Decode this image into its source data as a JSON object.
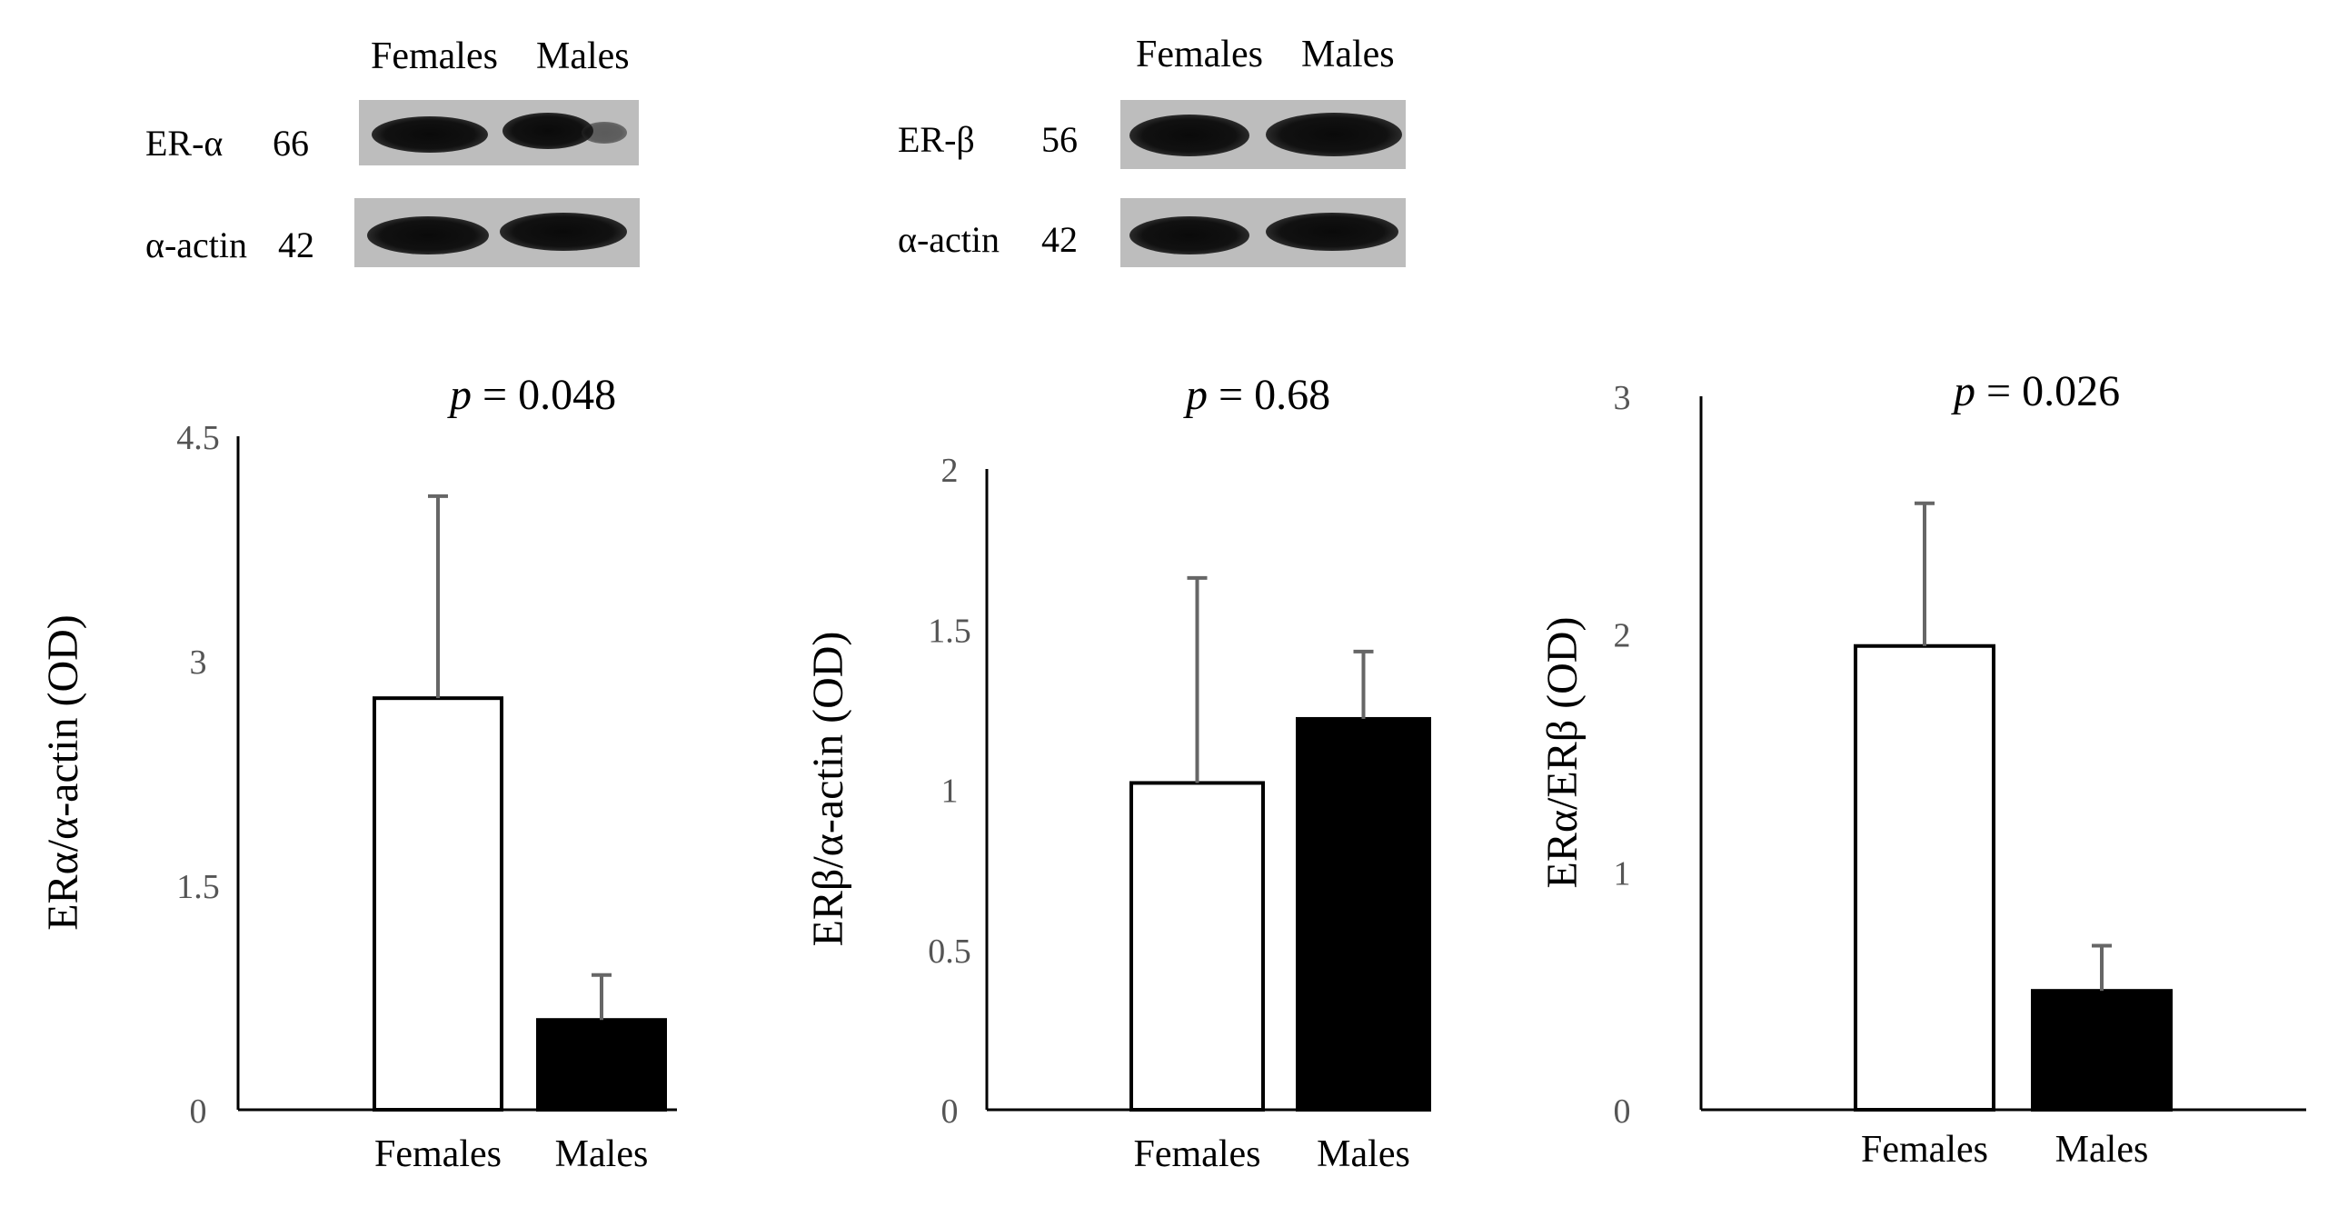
{
  "blots": [
    {
      "columns": [
        "Females",
        "Males"
      ],
      "rows": [
        {
          "protein": "ER-α",
          "kda": "66"
        },
        {
          "protein": "α-actin",
          "kda": "42"
        }
      ]
    },
    {
      "columns": [
        "Females",
        "Males"
      ],
      "rows": [
        {
          "protein": "ER-β",
          "kda": "56"
        },
        {
          "protein": "α-actin",
          "kda": "42"
        }
      ]
    }
  ],
  "chart_data": [
    {
      "type": "bar",
      "categories": [
        "Females",
        "Males"
      ],
      "values": [
        2.75,
        0.6
      ],
      "errors": [
        1.35,
        0.3
      ],
      "bar_colors": [
        "#ffffff",
        "#000000"
      ],
      "ylabel": "ERα/α-actin (OD)",
      "yticks": [
        "0",
        "1.5",
        "3",
        "4.5"
      ],
      "ylim": [
        0,
        4.5
      ],
      "annotation": {
        "p_symbol": "p",
        "p_text": " = 0.048"
      }
    },
    {
      "type": "bar",
      "categories": [
        "Females",
        "Males"
      ],
      "values": [
        1.02,
        1.22
      ],
      "errors": [
        0.64,
        0.21
      ],
      "bar_colors": [
        "#ffffff",
        "#000000"
      ],
      "ylabel": "ERβ/α-actin (OD)",
      "yticks": [
        "0",
        "0.5",
        "1",
        "1.5",
        "2"
      ],
      "ylim": [
        0,
        2
      ],
      "annotation": {
        "p_symbol": "p",
        "p_text": " = 0.68"
      }
    },
    {
      "type": "bar",
      "categories": [
        "Females",
        "Males"
      ],
      "values": [
        1.95,
        0.5
      ],
      "errors": [
        0.6,
        0.19
      ],
      "bar_colors": [
        "#ffffff",
        "#000000"
      ],
      "ylabel": "ERα/ERβ (OD)",
      "yticks": [
        "0",
        "1",
        "2",
        "3"
      ],
      "ylim": [
        0,
        3
      ],
      "annotation": {
        "p_symbol": "p",
        "p_text": " = 0.026"
      }
    }
  ]
}
